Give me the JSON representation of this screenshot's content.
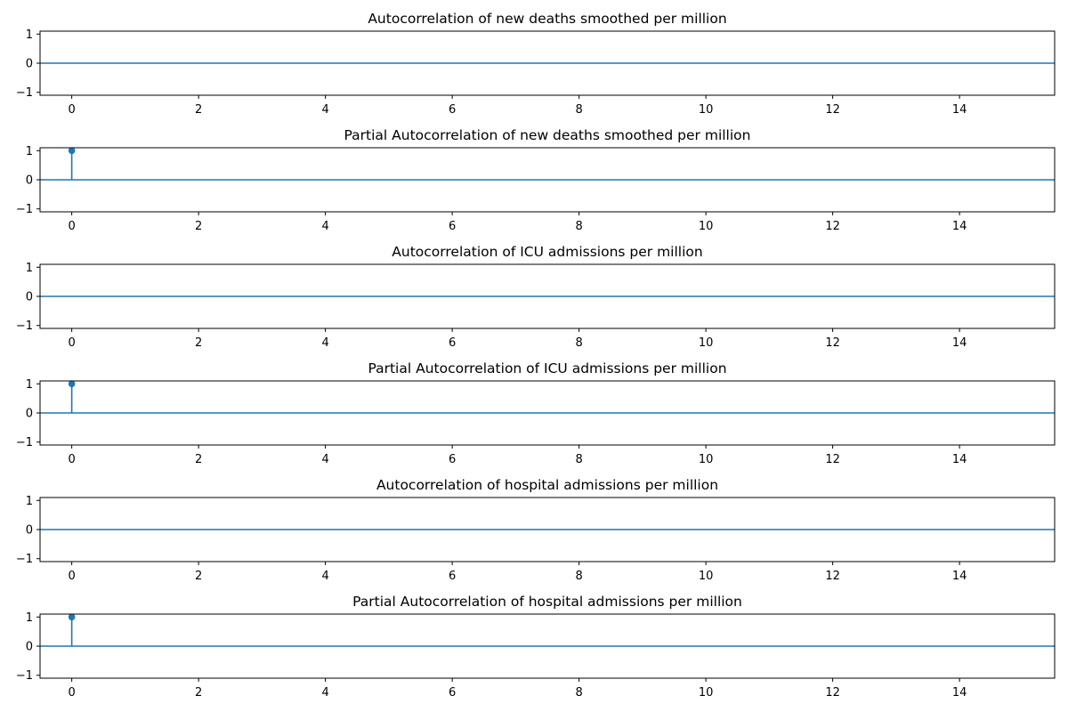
{
  "chart_data": [
    {
      "type": "stem",
      "title": "Autocorrelation of new deaths smoothed per million",
      "xlim": [
        -0.5,
        15.5
      ],
      "ylim": [
        -1.1,
        1.1
      ],
      "xticks": [
        0,
        2,
        4,
        6,
        8,
        10,
        12,
        14
      ],
      "yticks": [
        -1,
        0,
        1
      ],
      "points": [],
      "zero_line": true,
      "color": "#1f77b4",
      "grid": false
    },
    {
      "type": "stem",
      "title": "Partial Autocorrelation of new deaths smoothed per million",
      "xlim": [
        -0.5,
        15.5
      ],
      "ylim": [
        -1.1,
        1.1
      ],
      "xticks": [
        0,
        2,
        4,
        6,
        8,
        10,
        12,
        14
      ],
      "yticks": [
        -1,
        0,
        1
      ],
      "points": [
        {
          "x": 0,
          "y": 1.0
        }
      ],
      "zero_line": true,
      "color": "#1f77b4",
      "grid": false
    },
    {
      "type": "stem",
      "title": "Autocorrelation of ICU admissions per million",
      "xlim": [
        -0.5,
        15.5
      ],
      "ylim": [
        -1.1,
        1.1
      ],
      "xticks": [
        0,
        2,
        4,
        6,
        8,
        10,
        12,
        14
      ],
      "yticks": [
        -1,
        0,
        1
      ],
      "points": [],
      "zero_line": true,
      "color": "#1f77b4",
      "grid": false
    },
    {
      "type": "stem",
      "title": "Partial Autocorrelation of ICU admissions per million",
      "xlim": [
        -0.5,
        15.5
      ],
      "ylim": [
        -1.1,
        1.1
      ],
      "xticks": [
        0,
        2,
        4,
        6,
        8,
        10,
        12,
        14
      ],
      "yticks": [
        -1,
        0,
        1
      ],
      "points": [
        {
          "x": 0,
          "y": 1.0
        }
      ],
      "zero_line": true,
      "color": "#1f77b4",
      "grid": false
    },
    {
      "type": "stem",
      "title": "Autocorrelation of hospital admissions per million",
      "xlim": [
        -0.5,
        15.5
      ],
      "ylim": [
        -1.1,
        1.1
      ],
      "xticks": [
        0,
        2,
        4,
        6,
        8,
        10,
        12,
        14
      ],
      "yticks": [
        -1,
        0,
        1
      ],
      "points": [],
      "zero_line": true,
      "color": "#1f77b4",
      "grid": false
    },
    {
      "type": "stem",
      "title": "Partial Autocorrelation of hospital admissions per million",
      "xlim": [
        -0.5,
        15.5
      ],
      "ylim": [
        -1.1,
        1.1
      ],
      "xticks": [
        0,
        2,
        4,
        6,
        8,
        10,
        12,
        14
      ],
      "yticks": [
        -1,
        0,
        1
      ],
      "points": [
        {
          "x": 0,
          "y": 1.0
        }
      ],
      "zero_line": true,
      "color": "#1f77b4",
      "grid": false
    }
  ]
}
